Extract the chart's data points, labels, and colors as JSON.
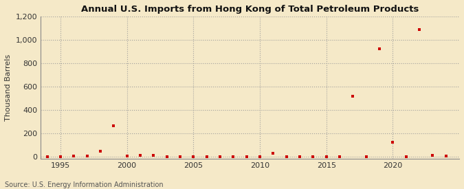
{
  "title": "Annual U.S. Imports from Hong Kong of Total Petroleum Products",
  "ylabel": "Thousand Barrels",
  "source": "Source: U.S. Energy Information Administration",
  "background_color": "#f5e9c8",
  "marker_color": "#cc0000",
  "grid_color": "#999999",
  "xlim": [
    1993.5,
    2025
  ],
  "ylim": [
    -20,
    1200
  ],
  "yticks": [
    0,
    200,
    400,
    600,
    800,
    1000,
    1200
  ],
  "xticks": [
    1995,
    2000,
    2005,
    2010,
    2015,
    2020
  ],
  "data": [
    [
      1994,
      0
    ],
    [
      1995,
      0
    ],
    [
      1996,
      2
    ],
    [
      1997,
      5
    ],
    [
      1998,
      48
    ],
    [
      1999,
      265
    ],
    [
      2000,
      3
    ],
    [
      2001,
      8
    ],
    [
      2002,
      10
    ],
    [
      2003,
      0
    ],
    [
      2004,
      0
    ],
    [
      2005,
      0
    ],
    [
      2006,
      0
    ],
    [
      2007,
      0
    ],
    [
      2008,
      0
    ],
    [
      2009,
      0
    ],
    [
      2010,
      0
    ],
    [
      2011,
      30
    ],
    [
      2012,
      0
    ],
    [
      2013,
      0
    ],
    [
      2014,
      0
    ],
    [
      2015,
      0
    ],
    [
      2016,
      0
    ],
    [
      2017,
      515
    ],
    [
      2018,
      0
    ],
    [
      2019,
      920
    ],
    [
      2020,
      120
    ],
    [
      2021,
      0
    ],
    [
      2022,
      1090
    ],
    [
      2023,
      10
    ],
    [
      2024,
      5
    ]
  ]
}
